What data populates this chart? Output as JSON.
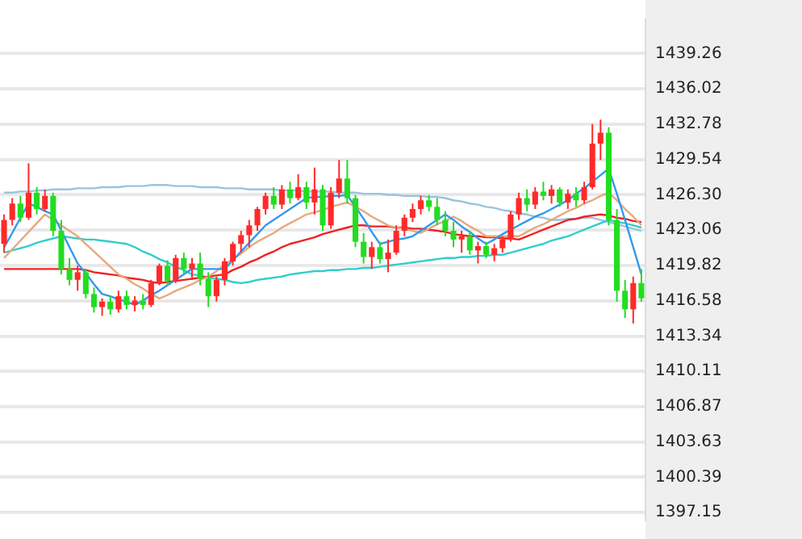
{
  "chart_data": {
    "type": "candlestick",
    "categories": [
      null,
      null,
      null,
      null,
      null,
      null,
      null,
      null,
      null,
      null,
      null,
      null,
      null,
      null,
      null,
      null,
      null,
      null,
      null,
      null,
      null,
      null,
      null,
      null,
      null,
      null,
      null,
      null,
      null,
      null,
      null,
      null,
      null,
      null,
      null,
      null,
      null,
      null,
      null,
      null,
      null,
      null,
      null,
      null,
      null,
      null,
      null,
      null,
      null,
      null,
      null,
      null,
      null,
      null,
      null,
      null,
      null,
      null,
      null,
      null,
      null,
      null,
      null,
      null,
      null,
      null,
      null,
      null,
      null,
      null,
      null,
      null,
      null,
      null,
      null,
      null,
      null,
      null,
      null
    ],
    "ylim": [
      1396.5,
      1442.4
    ],
    "yticks": [
      1397.15,
      1400.39,
      1403.63,
      1406.87,
      1410.11,
      1413.34,
      1416.58,
      1419.82,
      1423.06,
      {
        "value": 1426.3,
        "label": "1426.30"
      },
      1429.54,
      1432.78,
      1436.02,
      1439.26
    ],
    "tick_labels": "y",
    "grid": "y",
    "legend": false,
    "series": [
      {
        "type": "candlestick",
        "ohlc": [
          [
            1421.8,
            1424.5,
            1421.0,
            1424.0
          ],
          [
            1424.0,
            1426.0,
            1423.5,
            1425.5
          ],
          [
            1425.5,
            1426.2,
            1423.8,
            1424.2
          ],
          [
            1424.2,
            1429.2,
            1424.0,
            1426.5
          ],
          [
            1426.5,
            1427.0,
            1424.5,
            1425.0
          ],
          [
            1425.0,
            1426.8,
            1424.8,
            1426.2
          ],
          [
            1426.2,
            1426.5,
            1422.5,
            1423.0
          ],
          [
            1423.0,
            1424.0,
            1419.0,
            1419.5
          ],
          [
            1419.5,
            1420.5,
            1418.0,
            1418.5
          ],
          [
            1418.5,
            1419.8,
            1417.5,
            1419.2
          ],
          [
            1419.2,
            1419.5,
            1416.8,
            1417.2
          ],
          [
            1417.2,
            1417.8,
            1415.5,
            1416.0
          ],
          [
            1416.0,
            1416.8,
            1415.2,
            1416.5
          ],
          [
            1416.5,
            1417.0,
            1415.3,
            1415.8
          ],
          [
            1415.8,
            1417.5,
            1415.5,
            1417.0
          ],
          [
            1417.0,
            1417.5,
            1415.8,
            1416.2
          ],
          [
            1416.2,
            1417.0,
            1415.6,
            1416.6
          ],
          [
            1416.6,
            1417.2,
            1415.8,
            1416.2
          ],
          [
            1416.2,
            1418.5,
            1416.0,
            1418.2
          ],
          [
            1418.2,
            1420.0,
            1418.0,
            1419.8
          ],
          [
            1419.8,
            1420.3,
            1418.0,
            1418.4
          ],
          [
            1418.4,
            1420.8,
            1418.2,
            1420.5
          ],
          [
            1420.5,
            1421.0,
            1419.0,
            1419.5
          ],
          [
            1419.5,
            1420.5,
            1418.5,
            1420.0
          ],
          [
            1420.0,
            1421.0,
            1418.0,
            1418.6
          ],
          [
            1418.6,
            1419.2,
            1416.0,
            1417.0
          ],
          [
            1417.0,
            1418.8,
            1416.5,
            1418.5
          ],
          [
            1418.5,
            1420.5,
            1418.0,
            1420.2
          ],
          [
            1420.2,
            1422.0,
            1419.8,
            1421.8
          ],
          [
            1421.8,
            1423.0,
            1421.0,
            1422.6
          ],
          [
            1422.6,
            1424.0,
            1421.5,
            1423.5
          ],
          [
            1423.5,
            1425.2,
            1423.0,
            1425.0
          ],
          [
            1425.0,
            1426.5,
            1424.5,
            1426.2
          ],
          [
            1426.2,
            1427.0,
            1425.0,
            1425.4
          ],
          [
            1425.4,
            1427.2,
            1425.0,
            1426.8
          ],
          [
            1426.8,
            1427.5,
            1425.5,
            1426.0
          ],
          [
            1426.0,
            1428.2,
            1425.8,
            1427.0
          ],
          [
            1427.0,
            1427.5,
            1425.0,
            1425.6
          ],
          [
            1425.6,
            1428.8,
            1424.5,
            1426.8
          ],
          [
            1426.8,
            1427.2,
            1423.0,
            1423.5
          ],
          [
            1423.5,
            1427.0,
            1423.2,
            1426.5
          ],
          [
            1426.5,
            1429.5,
            1426.0,
            1427.8
          ],
          [
            1427.8,
            1429.5,
            1425.5,
            1426.0
          ],
          [
            1426.0,
            1426.3,
            1421.5,
            1422.0
          ],
          [
            1422.0,
            1422.8,
            1420.0,
            1420.6
          ],
          [
            1420.6,
            1422.0,
            1419.5,
            1421.5
          ],
          [
            1421.5,
            1422.0,
            1420.0,
            1420.4
          ],
          [
            1420.4,
            1422.2,
            1419.2,
            1421.0
          ],
          [
            1421.0,
            1423.5,
            1420.8,
            1423.0
          ],
          [
            1423.0,
            1424.5,
            1422.5,
            1424.2
          ],
          [
            1424.2,
            1425.5,
            1423.8,
            1425.0
          ],
          [
            1425.0,
            1426.2,
            1424.5,
            1425.8
          ],
          [
            1425.8,
            1426.3,
            1424.8,
            1425.2
          ],
          [
            1425.2,
            1426.0,
            1423.5,
            1424.0
          ],
          [
            1424.0,
            1424.8,
            1422.5,
            1423.0
          ],
          [
            1423.0,
            1423.8,
            1421.5,
            1422.2
          ],
          [
            1422.2,
            1423.0,
            1421.0,
            1422.5
          ],
          [
            1422.5,
            1423.0,
            1420.8,
            1421.2
          ],
          [
            1421.2,
            1422.0,
            1420.0,
            1421.6
          ],
          [
            1421.6,
            1422.0,
            1420.5,
            1420.8
          ],
          [
            1420.8,
            1421.8,
            1420.2,
            1421.4
          ],
          [
            1421.4,
            1422.5,
            1421.0,
            1422.2
          ],
          [
            1422.2,
            1424.8,
            1422.0,
            1424.5
          ],
          [
            1424.5,
            1426.5,
            1424.0,
            1426.0
          ],
          [
            1426.0,
            1426.8,
            1424.8,
            1425.4
          ],
          [
            1425.4,
            1427.0,
            1425.0,
            1426.6
          ],
          [
            1426.6,
            1427.5,
            1425.8,
            1426.2
          ],
          [
            1426.2,
            1427.2,
            1425.5,
            1426.8
          ],
          [
            1426.8,
            1427.0,
            1425.2,
            1425.6
          ],
          [
            1425.6,
            1426.8,
            1425.0,
            1426.4
          ],
          [
            1426.4,
            1427.0,
            1425.2,
            1425.8
          ],
          [
            1425.8,
            1427.5,
            1425.5,
            1427.0
          ],
          [
            1427.0,
            1432.8,
            1426.8,
            1431.0
          ],
          [
            1431.0,
            1433.2,
            1429.5,
            1432.0
          ],
          [
            1432.0,
            1432.5,
            1423.5,
            1424.0
          ],
          [
            1424.0,
            1425.0,
            1416.5,
            1417.5
          ],
          [
            1417.5,
            1418.5,
            1415.0,
            1415.8
          ],
          [
            1415.8,
            1418.8,
            1414.5,
            1418.2
          ],
          [
            1418.2,
            1419.5,
            1416.5,
            1416.8
          ]
        ],
        "colors": [
          "#ff2a2a",
          "#ff2a2a",
          "#22dd22",
          "#ff2a2a",
          "#22dd22",
          "#ff2a2a",
          "#22dd22",
          "#22dd22",
          "#22dd22",
          "#ff2a2a",
          "#22dd22",
          "#22dd22",
          "#ff2a2a",
          "#22dd22",
          "#ff2a2a",
          "#22dd22",
          "#ff2a2a",
          "#22dd22",
          "#ff2a2a",
          "#ff2a2a",
          "#22dd22",
          "#ff2a2a",
          "#22dd22",
          "#ff2a2a",
          "#22dd22",
          "#22dd22",
          "#ff2a2a",
          "#ff2a2a",
          "#ff2a2a",
          "#ff2a2a",
          "#ff2a2a",
          "#ff2a2a",
          "#ff2a2a",
          "#22dd22",
          "#ff2a2a",
          "#22dd22",
          "#ff2a2a",
          "#22dd22",
          "#ff2a2a",
          "#22dd22",
          "#ff2a2a",
          "#ff2a2a",
          "#22dd22",
          "#22dd22",
          "#22dd22",
          "#ff2a2a",
          "#22dd22",
          "#ff2a2a",
          "#ff2a2a",
          "#ff2a2a",
          "#ff2a2a",
          "#ff2a2a",
          "#22dd22",
          "#22dd22",
          "#22dd22",
          "#22dd22",
          "#ff2a2a",
          "#22dd22",
          "#ff2a2a",
          "#22dd22",
          "#ff2a2a",
          "#ff2a2a",
          "#ff2a2a",
          "#ff2a2a",
          "#22dd22",
          "#ff2a2a",
          "#22dd22",
          "#ff2a2a",
          "#22dd22",
          "#ff2a2a",
          "#22dd22",
          "#ff2a2a",
          "#ff2a2a",
          "#ff2a2a",
          "#22dd22",
          "#22dd22",
          "#22dd22",
          "#ff2a2a",
          "#22dd22"
        ]
      },
      {
        "type": "line",
        "color": "#3399ee",
        "values": [
          1421.5,
          1422.8,
          1424.2,
          1425.5,
          1425.2,
          1424.8,
          1424.5,
          1423.0,
          1421.5,
          1420.0,
          1419.1,
          1418.1,
          1417.2,
          1417.0,
          1416.7,
          1416.5,
          1416.2,
          1416.6,
          1417.1,
          1417.5,
          1418.0,
          1418.5,
          1419.0,
          1419.5,
          1419.5,
          1419.5,
          1419.5,
          1419.5,
          1420.3,
          1421.1,
          1421.9,
          1422.7,
          1423.5,
          1424.0,
          1424.5,
          1425.0,
          1425.5,
          1426.0,
          1426.1,
          1426.1,
          1426.2,
          1426.2,
          1426.3,
          1425.2,
          1424.1,
          1422.9,
          1421.8,
          1422.0,
          1422.2,
          1422.3,
          1422.5,
          1423.0,
          1423.5,
          1424.0,
          1424.5,
          1424.0,
          1423.4,
          1422.9,
          1422.3,
          1421.8,
          1422.2,
          1422.7,
          1423.1,
          1423.5,
          1423.9,
          1424.3,
          1424.6,
          1425.0,
          1425.4,
          1425.8,
          1426.4,
          1426.9,
          1427.5,
          1428.1,
          1428.7,
          1426.4,
          1424.0,
          1421.5,
          1419.0
        ]
      },
      {
        "type": "line",
        "color": "#e8a87c",
        "values": [
          1420.5,
          1421.3,
          1422.1,
          1422.9,
          1423.7,
          1424.5,
          1424.0,
          1423.5,
          1423.0,
          1422.5,
          1421.8,
          1421.1,
          1420.4,
          1419.7,
          1419.0,
          1418.6,
          1418.1,
          1417.7,
          1417.2,
          1416.8,
          1417.1,
          1417.5,
          1417.8,
          1418.1,
          1418.5,
          1418.8,
          1419.3,
          1419.9,
          1420.4,
          1420.9,
          1421.5,
          1422.0,
          1422.4,
          1422.8,
          1423.3,
          1423.7,
          1424.1,
          1424.5,
          1424.7,
          1424.9,
          1425.2,
          1425.4,
          1425.6,
          1425.2,
          1424.8,
          1424.3,
          1423.9,
          1423.5,
          1423.3,
          1423.2,
          1423.0,
          1422.8,
          1423.2,
          1423.6,
          1423.9,
          1424.3,
          1423.9,
          1423.4,
          1423.0,
          1422.5,
          1422.5,
          1422.5,
          1422.5,
          1422.5,
          1422.9,
          1423.3,
          1423.6,
          1424.0,
          1424.4,
          1424.8,
          1425.1,
          1425.5,
          1425.8,
          1426.2,
          1426.5,
          1425.8,
          1425.0,
          1424.3,
          1423.5
        ]
      },
      {
        "type": "line",
        "color": "#ee2222",
        "values": [
          1419.5,
          1419.5,
          1419.5,
          1419.5,
          1419.5,
          1419.5,
          1419.5,
          1419.5,
          1419.5,
          1419.5,
          1419.4,
          1419.2,
          1419.1,
          1419.0,
          1418.9,
          1418.7,
          1418.6,
          1418.5,
          1418.3,
          1418.2,
          1418.3,
          1418.4,
          1418.5,
          1418.6,
          1418.7,
          1418.8,
          1418.9,
          1419.0,
          1419.4,
          1419.7,
          1420.1,
          1420.4,
          1420.8,
          1421.1,
          1421.5,
          1421.8,
          1422.0,
          1422.2,
          1422.4,
          1422.7,
          1422.9,
          1423.1,
          1423.3,
          1423.5,
          1423.5,
          1423.4,
          1423.4,
          1423.4,
          1423.3,
          1423.3,
          1423.2,
          1423.2,
          1423.1,
          1423.0,
          1422.9,
          1422.7,
          1422.6,
          1422.5,
          1422.5,
          1422.4,
          1422.4,
          1422.3,
          1422.3,
          1422.2,
          1422.5,
          1422.8,
          1423.1,
          1423.4,
          1423.7,
          1424.0,
          1424.1,
          1424.3,
          1424.4,
          1424.5,
          1424.4,
          1424.2,
          1424.1,
          1423.9,
          1423.8
        ]
      },
      {
        "type": "line",
        "color": "#33cccc",
        "values": [
          1421.0,
          1421.2,
          1421.4,
          1421.6,
          1421.9,
          1422.1,
          1422.3,
          1422.5,
          1422.4,
          1422.3,
          1422.2,
          1422.2,
          1422.1,
          1422.0,
          1421.9,
          1421.8,
          1421.5,
          1421.1,
          1420.8,
          1420.4,
          1420.1,
          1419.7,
          1419.4,
          1419.0,
          1418.9,
          1418.7,
          1418.6,
          1418.5,
          1418.3,
          1418.2,
          1418.3,
          1418.5,
          1418.6,
          1418.7,
          1418.8,
          1419.0,
          1419.1,
          1419.2,
          1419.3,
          1419.3,
          1419.4,
          1419.4,
          1419.5,
          1419.5,
          1419.6,
          1419.6,
          1419.7,
          1419.8,
          1419.9,
          1420.0,
          1420.1,
          1420.2,
          1420.3,
          1420.4,
          1420.5,
          1420.5,
          1420.6,
          1420.6,
          1420.7,
          1420.7,
          1420.8,
          1420.8,
          1421.0,
          1421.2,
          1421.4,
          1421.6,
          1421.8,
          1422.1,
          1422.3,
          1422.5,
          1422.8,
          1423.1,
          1423.4,
          1423.7,
          1424.0,
          1423.8,
          1423.7,
          1423.5,
          1423.3
        ]
      },
      {
        "type": "line",
        "color": "#99c4dd",
        "values": [
          1426.5,
          1426.5,
          1426.6,
          1426.6,
          1426.7,
          1426.7,
          1426.8,
          1426.8,
          1426.8,
          1426.9,
          1426.9,
          1426.9,
          1427.0,
          1427.0,
          1427.0,
          1427.1,
          1427.1,
          1427.1,
          1427.2,
          1427.2,
          1427.2,
          1427.1,
          1427.1,
          1427.1,
          1427.0,
          1427.0,
          1427.0,
          1426.9,
          1426.9,
          1426.9,
          1426.8,
          1426.8,
          1426.8,
          1426.8,
          1426.7,
          1426.7,
          1426.7,
          1426.6,
          1426.6,
          1426.6,
          1426.6,
          1426.5,
          1426.5,
          1426.5,
          1426.4,
          1426.4,
          1426.4,
          1426.3,
          1426.3,
          1426.2,
          1426.2,
          1426.2,
          1426.1,
          1426.1,
          1426.0,
          1425.8,
          1425.7,
          1425.5,
          1425.4,
          1425.2,
          1425.1,
          1424.9,
          1424.8,
          1424.6,
          1424.5,
          1424.3,
          1424.2,
          1424.0,
          1424.0,
          1424.1,
          1424.1,
          1424.2,
          1424.2,
          1424.0,
          1423.8,
          1423.6,
          1423.4,
          1423.2,
          1423.0
        ]
      }
    ]
  }
}
